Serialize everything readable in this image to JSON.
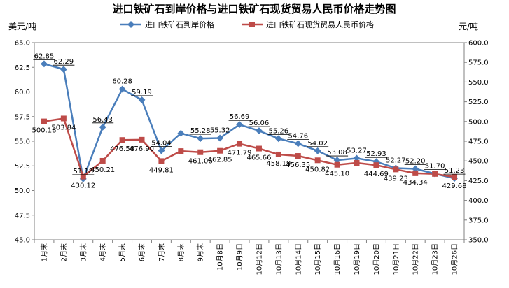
{
  "chart_data": {
    "type": "line",
    "title": "进口铁矿石到岸价格与进口铁矿石现货贸易人民币价格走势图",
    "left_unit": "美元/吨",
    "right_unit": "元/吨",
    "categories": [
      "1月末",
      "2月末",
      "3月末",
      "4月末",
      "5月末",
      "6月末",
      "7月末",
      "8月末",
      "9月末",
      "10月8日",
      "10月9日",
      "10月12日",
      "10月13日",
      "10月14日",
      "10月15日",
      "10月16日",
      "10月19日",
      "10月20日",
      "10月21日",
      "10月22日",
      "10月23日",
      "10月26日"
    ],
    "left_axis": {
      "min": 45.0,
      "max": 65.0,
      "ticks": [
        "45.0",
        "47.5",
        "50.0",
        "52.5",
        "55.0",
        "57.5",
        "60.0",
        "62.5",
        "65.0"
      ]
    },
    "right_axis": {
      "min": 350.0,
      "max": 600.0,
      "ticks": [
        "350.0",
        "375.0",
        "400.0",
        "425.0",
        "450.0",
        "475.0",
        "500.0",
        "525.0",
        "550.0",
        "575.0",
        "600.0"
      ]
    },
    "series": [
      {
        "name": "进口铁矿石到岸价格",
        "axis": "left",
        "color": "#4a7ebb",
        "marker": "diamond",
        "values": [
          62.85,
          62.29,
          51.18,
          56.43,
          60.28,
          59.19,
          54.04,
          55.8,
          55.28,
          55.32,
          56.69,
          56.06,
          55.26,
          54.76,
          54.02,
          53.08,
          53.27,
          52.93,
          52.27,
          52.2,
          51.7,
          51.23
        ],
        "labels": [
          "62.85",
          "62.29",
          "51.18",
          "56.43",
          "60.28",
          "59.19",
          "54.04",
          "",
          "55.28",
          "55.32",
          "56.69",
          "56.06",
          "55.26",
          "54.76",
          "54.02",
          "53.08",
          "53.27",
          "52.93",
          "52.27",
          "52.20",
          "51.70",
          "51.23"
        ]
      },
      {
        "name": "进口铁矿石现货贸易人民币价格",
        "axis": "right",
        "color": "#be4b48",
        "marker": "square",
        "values": [
          500.18,
          503.84,
          430.12,
          450.21,
          476.58,
          476.9,
          449.81,
          462.5,
          461.06,
          462.85,
          471.79,
          465.66,
          458.19,
          456.35,
          450.82,
          445.1,
          447.5,
          444.69,
          439.23,
          434.34,
          433.5,
          429.68
        ],
        "labels": [
          "500.18",
          "503.84",
          "430.12",
          "450.21",
          "476.58",
          "476.90",
          "449.81",
          "",
          "461.06",
          "462.85",
          "471.79",
          "465.66",
          "458.19",
          "456.35",
          "450.82",
          "445.10",
          "",
          "444.69",
          "439.23",
          "434.34",
          "",
          "429.68"
        ]
      }
    ]
  }
}
